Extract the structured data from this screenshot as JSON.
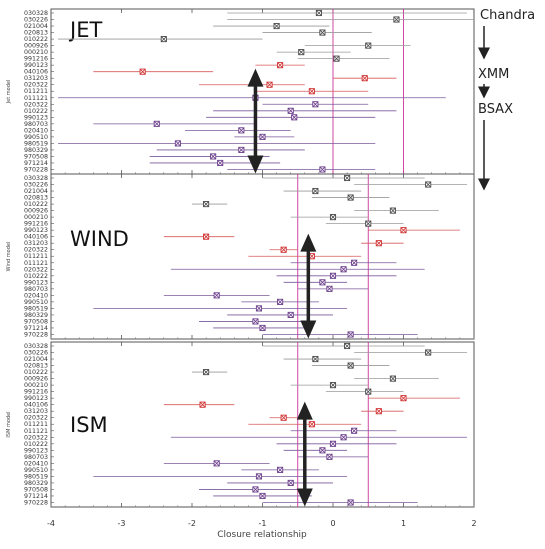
{
  "chart_data": {
    "type": "scatter",
    "xlabel": "Closure relationship",
    "xlim": [
      -4,
      2
    ],
    "x_ticks": [
      "-4",
      "-3",
      "-2",
      "-1",
      "0",
      "1",
      "2"
    ],
    "row_labels": [
      "030328",
      "030226",
      "021004",
      "020813",
      "010222",
      "000926",
      "000210",
      "991216",
      "990123",
      "040106",
      "031203",
      "020322",
      "011211",
      "011121",
      "020322",
      "010222",
      "990123",
      "980703",
      "020410",
      "990510",
      "980519",
      "980329",
      "970508",
      "971214",
      "970228"
    ],
    "row_styles": [
      "black",
      "black",
      "black",
      "black",
      "black",
      "black",
      "black",
      "black",
      "red",
      "red",
      "red",
      "red",
      "red",
      "purple",
      "purple",
      "purple",
      "purple",
      "purple",
      "purple",
      "purple",
      "purple",
      "purple",
      "purple",
      "purple",
      "purple"
    ],
    "colors": {
      "black": "#4a4a4a",
      "red": "#d03030",
      "purple": "#6a3d8a",
      "err_black": "#9a9a9a",
      "err_red": "#d65a5a",
      "err_purple": "#7a5a9a",
      "vline": "#cc3399",
      "arrow": "#222222"
    },
    "annotations": {
      "chandra": "Chandra",
      "xmm": "XMM",
      "bsax": "BSAX"
    },
    "panels": [
      {
        "name": "JET",
        "ylabel": "Jet model",
        "vlines": [
          0,
          1
        ],
        "arrow": [
          -1.1,
          -1.1
        ],
        "points": [
          [
            -0.2,
            -1.5,
            1.9
          ],
          [
            0.9,
            -1.5,
            2.0
          ],
          [
            -0.8,
            -1.7,
            -0.05
          ],
          [
            -0.15,
            -1.0,
            0.55
          ],
          [
            -2.4,
            -3.9,
            -1.0
          ],
          [
            0.5,
            -0.4,
            1.1
          ],
          [
            -0.45,
            -0.8,
            0.25
          ],
          [
            0.05,
            -0.5,
            0.8
          ],
          [
            -0.75,
            -1.1,
            -0.4
          ],
          [
            -2.7,
            -3.4,
            -1.7
          ],
          [
            0.45,
            0.0,
            0.9
          ],
          [
            -0.9,
            -1.9,
            -0.4
          ],
          [
            -0.3,
            -1.1,
            0.5
          ],
          [
            -1.1,
            -3.9,
            1.6
          ],
          [
            -0.25,
            -1.0,
            0.5
          ],
          [
            -0.6,
            -1.7,
            0.9
          ],
          [
            -0.55,
            -1.8,
            0.6
          ],
          [
            -2.5,
            -3.4,
            -1.1
          ],
          [
            -1.3,
            -2.1,
            -0.6
          ],
          [
            -1.0,
            -1.4,
            -0.55
          ],
          [
            -2.2,
            -3.9,
            0.6
          ],
          [
            -1.3,
            -2.5,
            -0.4
          ],
          [
            -1.7,
            -2.6,
            -0.9
          ],
          [
            -1.6,
            -2.6,
            -0.75
          ],
          [
            -0.15,
            -1.5,
            0.6
          ]
        ]
      },
      {
        "name": "WIND",
        "ylabel": "Wind model",
        "vlines": [
          -0.5,
          0.5
        ],
        "arrow": [
          -0.35,
          -0.35
        ],
        "points": [
          [
            0.2,
            -1.0,
            1.3
          ],
          [
            1.35,
            0.3,
            1.9
          ],
          [
            -0.25,
            -0.7,
            0.4
          ],
          [
            0.25,
            -0.3,
            0.8
          ],
          [
            -1.8,
            -2.0,
            -1.5
          ],
          [
            0.85,
            0.3,
            1.5
          ],
          [
            0.0,
            -0.6,
            0.5
          ],
          [
            0.5,
            -0.1,
            1.0
          ],
          [
            1.0,
            0.5,
            1.8
          ],
          [
            -1.8,
            -2.4,
            -1.4
          ],
          [
            0.65,
            0.4,
            1.0
          ],
          [
            -0.7,
            -0.9,
            -0.5
          ],
          [
            -0.3,
            -1.2,
            0.4
          ],
          [
            0.3,
            -0.6,
            0.9
          ],
          [
            0.15,
            -2.3,
            1.3
          ],
          [
            0.0,
            -0.8,
            0.9
          ],
          [
            -0.15,
            -0.7,
            0.2
          ],
          [
            -0.05,
            -0.5,
            0.5
          ],
          [
            -1.65,
            -2.4,
            -0.9
          ],
          [
            -0.75,
            -1.3,
            -0.2
          ],
          [
            -1.05,
            -3.4,
            0.2
          ],
          [
            -0.6,
            -1.5,
            0.0
          ],
          [
            -1.1,
            -1.9,
            -0.4
          ],
          [
            -1.0,
            -1.7,
            -0.3
          ],
          [
            0.25,
            -1.0,
            1.2
          ]
        ]
      },
      {
        "name": "ISM",
        "ylabel": "ISM model",
        "vlines": [
          -0.5,
          0.5
        ],
        "arrow": [
          -0.4,
          -0.4
        ],
        "points": [
          [
            0.2,
            -1.0,
            1.3
          ],
          [
            1.35,
            0.3,
            1.9
          ],
          [
            -0.25,
            -0.7,
            0.4
          ],
          [
            0.25,
            -0.3,
            0.8
          ],
          [
            -1.8,
            -2.0,
            -1.5
          ],
          [
            0.85,
            0.3,
            1.5
          ],
          [
            0.0,
            -0.6,
            0.5
          ],
          [
            0.5,
            -0.1,
            1.0
          ],
          [
            1.0,
            0.5,
            1.8
          ],
          [
            -1.85,
            -2.4,
            -1.4
          ],
          [
            0.65,
            0.4,
            1.0
          ],
          [
            -0.7,
            -0.9,
            -0.5
          ],
          [
            -0.3,
            -1.2,
            0.4
          ],
          [
            0.3,
            -0.6,
            0.9
          ],
          [
            0.15,
            -2.3,
            1.9
          ],
          [
            0.0,
            -0.8,
            0.9
          ],
          [
            -0.15,
            -0.7,
            0.2
          ],
          [
            -0.05,
            -0.5,
            0.5
          ],
          [
            -1.65,
            -2.4,
            -0.9
          ],
          [
            -0.75,
            -1.3,
            -0.2
          ],
          [
            -1.05,
            -3.4,
            0.2
          ],
          [
            -0.6,
            -1.5,
            0.0
          ],
          [
            -1.1,
            -1.9,
            -0.4
          ],
          [
            -1.0,
            -1.7,
            -0.3
          ],
          [
            0.25,
            -1.0,
            1.2
          ]
        ]
      }
    ]
  }
}
